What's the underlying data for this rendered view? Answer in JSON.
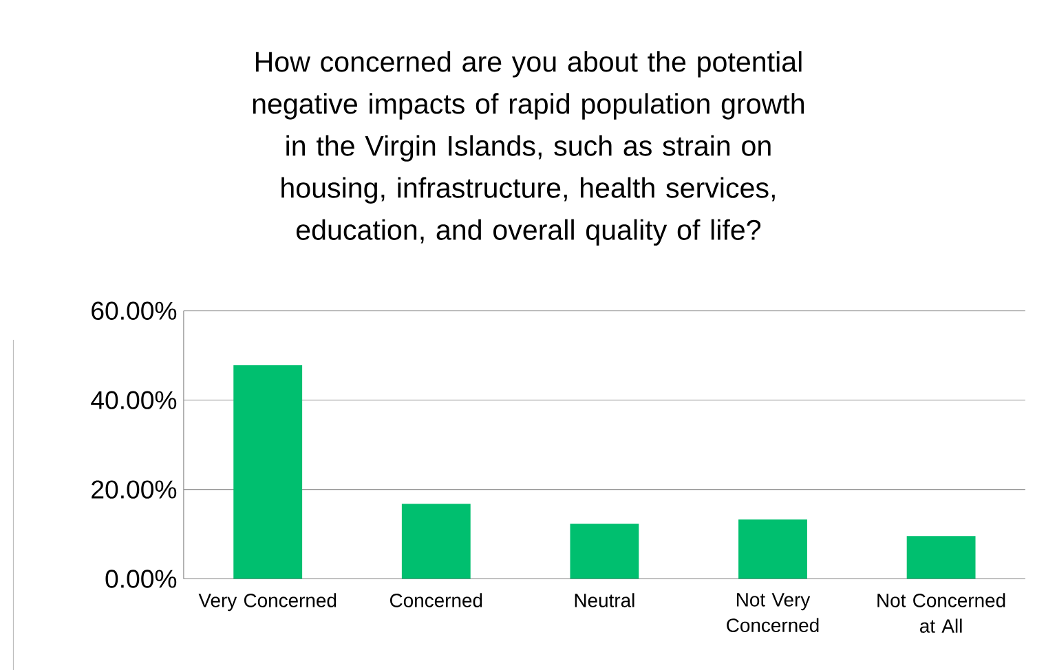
{
  "chart_data": {
    "type": "bar",
    "title": "How concerned are you about the potential negative impacts of rapid population growth in the Virgin Islands, such as strain on housing, infrastructure, health services, education, and overall quality of life?",
    "categories": [
      "Very Concerned",
      "Concerned",
      "Neutral",
      "Not Very Concerned",
      "Not Concerned at All"
    ],
    "values": [
      47.8,
      16.8,
      12.3,
      13.3,
      9.6
    ],
    "color": "#00bf6f",
    "ylim": [
      0,
      60
    ],
    "yticks": [
      {
        "value": 0,
        "label": "0.00%"
      },
      {
        "value": 20,
        "label": "20.00%"
      },
      {
        "value": 40,
        "label": "40.00%"
      },
      {
        "value": 60,
        "label": "60.00%"
      }
    ],
    "grid": "y"
  }
}
